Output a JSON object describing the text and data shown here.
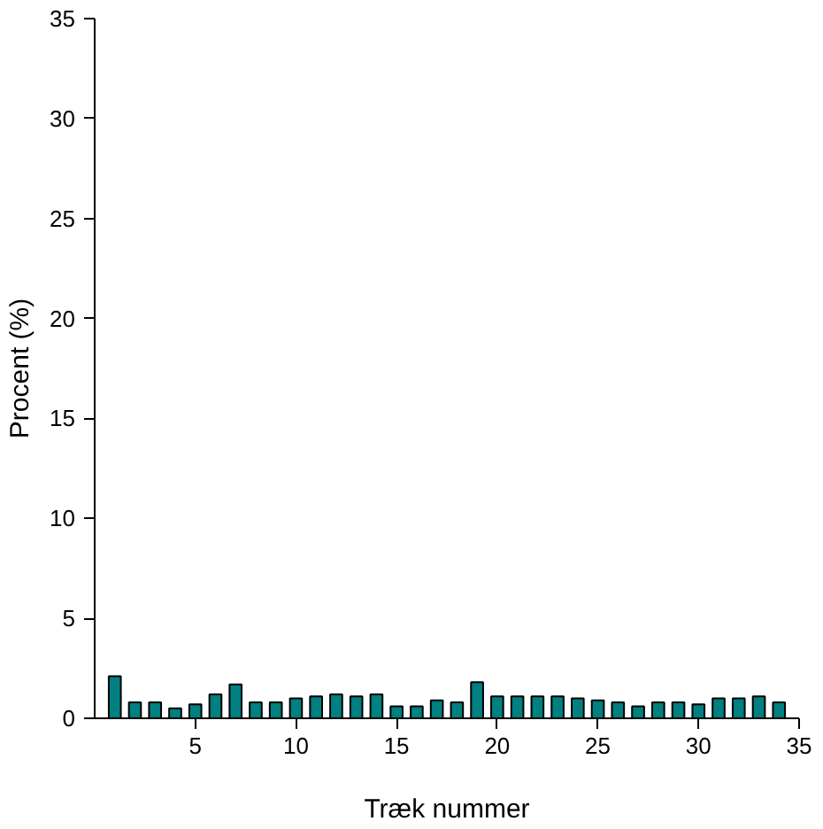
{
  "chart_data": {
    "type": "bar",
    "xlabel": "Træk nummer",
    "ylabel": "Procent (%)",
    "x": [
      1,
      2,
      3,
      4,
      5,
      6,
      7,
      8,
      9,
      10,
      11,
      12,
      13,
      14,
      15,
      16,
      17,
      18,
      19,
      20,
      21,
      22,
      23,
      24,
      25,
      26,
      27,
      28,
      29,
      30,
      31,
      32,
      33,
      34
    ],
    "values": [
      2.1,
      0.8,
      0.8,
      0.5,
      0.7,
      1.2,
      1.7,
      0.8,
      0.8,
      1.0,
      1.1,
      1.2,
      1.1,
      1.2,
      0.6,
      0.6,
      0.9,
      0.8,
      1.8,
      1.1,
      1.1,
      1.1,
      1.1,
      1.0,
      0.9,
      0.8,
      0.6,
      0.8,
      0.8,
      0.7,
      1.0,
      1.0,
      1.1,
      0.8
    ],
    "color": "#008080",
    "xlim": [
      0,
      35
    ],
    "xticks": [
      5,
      10,
      15,
      20,
      25,
      30,
      35
    ],
    "ylim": [
      0,
      35
    ],
    "yticks": [
      0,
      5,
      10,
      15,
      20,
      25,
      30,
      35
    ],
    "grid": false
  }
}
